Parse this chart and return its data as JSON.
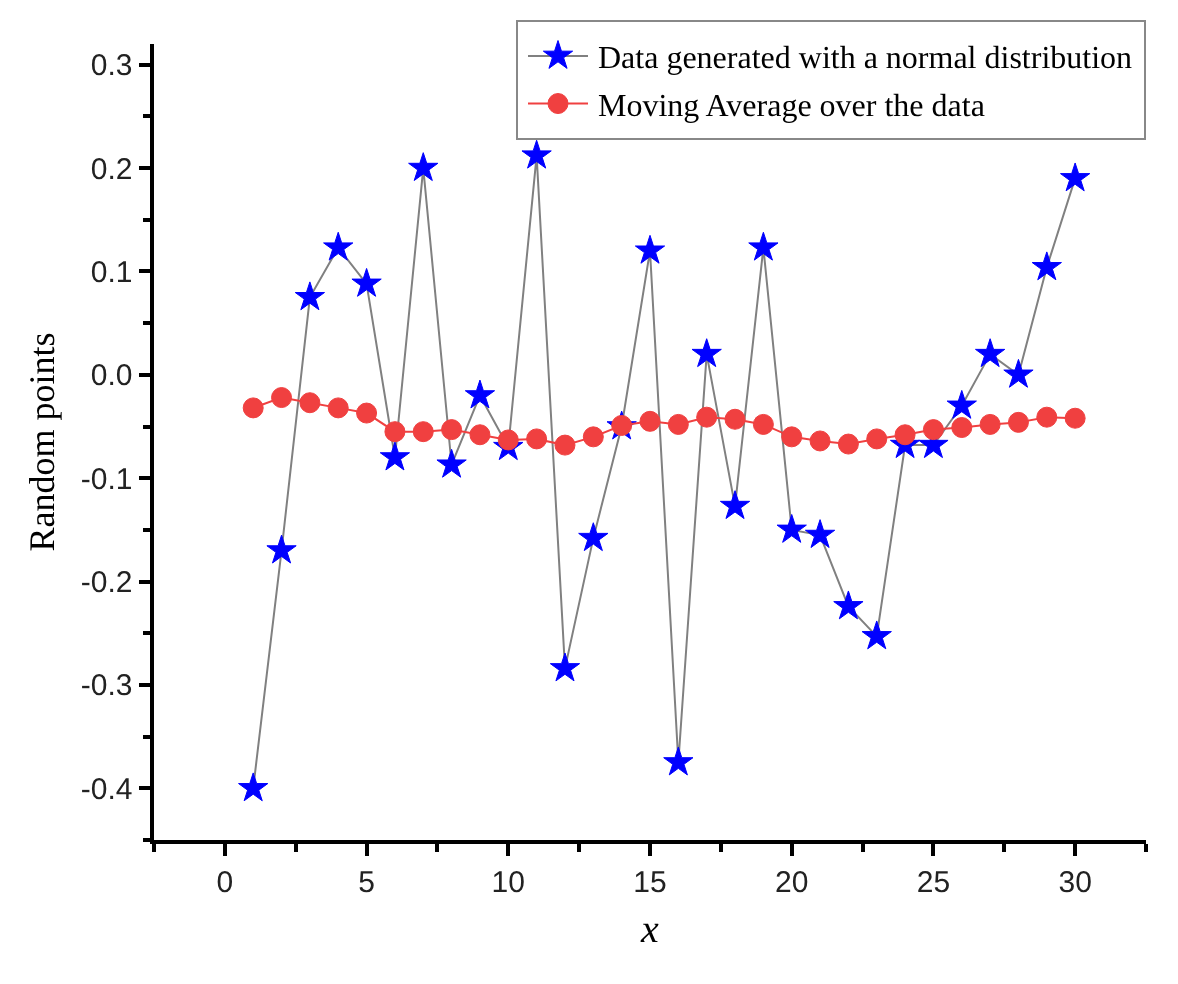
{
  "chart_data": {
    "type": "line",
    "xlabel": "x",
    "ylabel": "Random points",
    "x": [
      1,
      2,
      3,
      4,
      5,
      6,
      7,
      8,
      9,
      10,
      11,
      12,
      13,
      14,
      15,
      16,
      17,
      18,
      19,
      20,
      21,
      22,
      23,
      24,
      25,
      26,
      27,
      28,
      29,
      30
    ],
    "series": [
      {
        "name": "Data generated with a normal distribution",
        "color": "#0000ff",
        "marker": "star",
        "values": [
          -0.4,
          -0.17,
          0.075,
          0.123,
          0.088,
          -0.08,
          0.2,
          -0.087,
          -0.02,
          -0.07,
          0.212,
          -0.284,
          -0.158,
          -0.05,
          0.12,
          -0.375,
          0.02,
          -0.127,
          0.123,
          -0.15,
          -0.155,
          -0.224,
          -0.253,
          -0.068,
          -0.068,
          -0.03,
          0.02,
          0.0,
          0.104,
          0.19
        ]
      },
      {
        "name": "Moving Average over the data",
        "color": "#f04040",
        "marker": "circle",
        "values": [
          -0.032,
          -0.022,
          -0.027,
          -0.032,
          -0.037,
          -0.055,
          -0.055,
          -0.053,
          -0.058,
          -0.063,
          -0.062,
          -0.068,
          -0.06,
          -0.049,
          -0.045,
          -0.048,
          -0.041,
          -0.043,
          -0.048,
          -0.06,
          -0.064,
          -0.067,
          -0.062,
          -0.058,
          -0.053,
          -0.051,
          -0.048,
          -0.046,
          -0.041,
          -0.042
        ]
      }
    ],
    "xlim": [
      -2.5,
      32.5
    ],
    "xticks": [
      0,
      5,
      10,
      15,
      20,
      25,
      30
    ],
    "ylim": [
      -0.45,
      0.32
    ],
    "yticks": [
      {
        "value": -0.4,
        "label": "-0.4"
      },
      {
        "value": -0.3,
        "label": "-0.3"
      },
      {
        "value": -0.2,
        "label": "-0.2"
      },
      {
        "value": -0.1,
        "label": "-0.1"
      },
      {
        "value": 0.0,
        "label": "0.0"
      },
      {
        "value": 0.1,
        "label": "0.1"
      },
      {
        "value": 0.2,
        "label": "0.2"
      },
      {
        "value": 0.3,
        "label": "0.3"
      }
    ],
    "legend": "top right",
    "line_style": "solid"
  }
}
